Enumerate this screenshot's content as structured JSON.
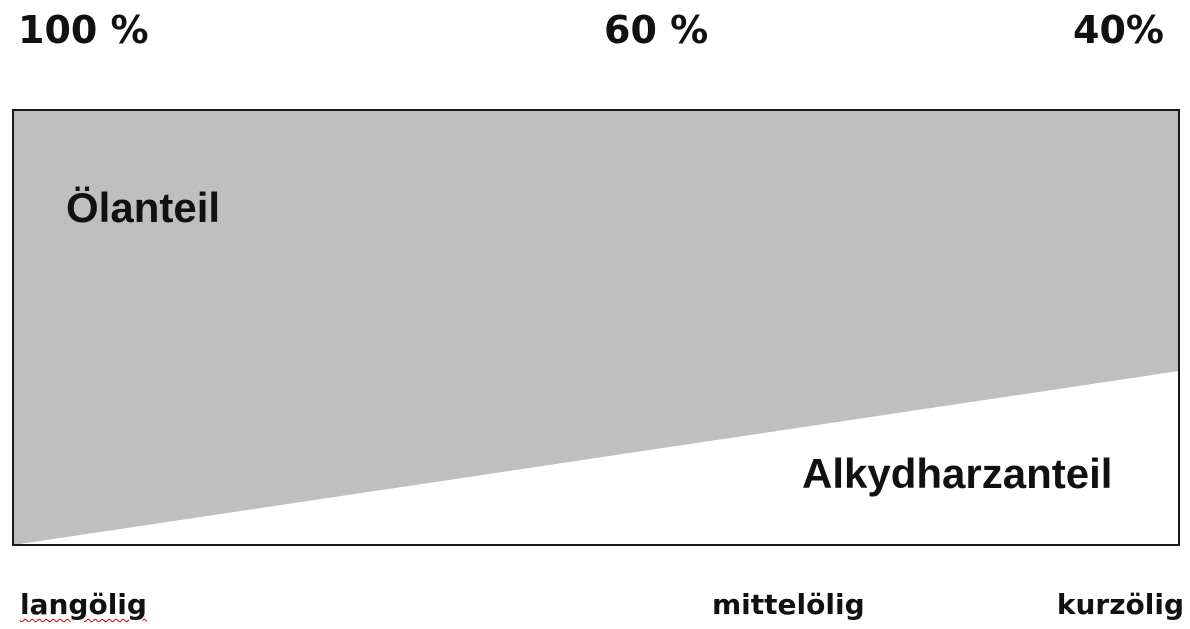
{
  "top_labels": {
    "left": "100 %",
    "middle": "60 %",
    "right": "40%"
  },
  "regions": {
    "upper": "Ölanteil",
    "lower": "Alkydharzanteil"
  },
  "bottom_labels": {
    "left": "langölig",
    "middle": "mittelölig",
    "right": "kurzölig"
  },
  "colors": {
    "oil_fill": "#bfbfbf",
    "alkyd_fill": "#ffffff",
    "border": "#1a1a1a"
  },
  "oil_share": {
    "start_percent": 100,
    "end_percent": 40
  }
}
